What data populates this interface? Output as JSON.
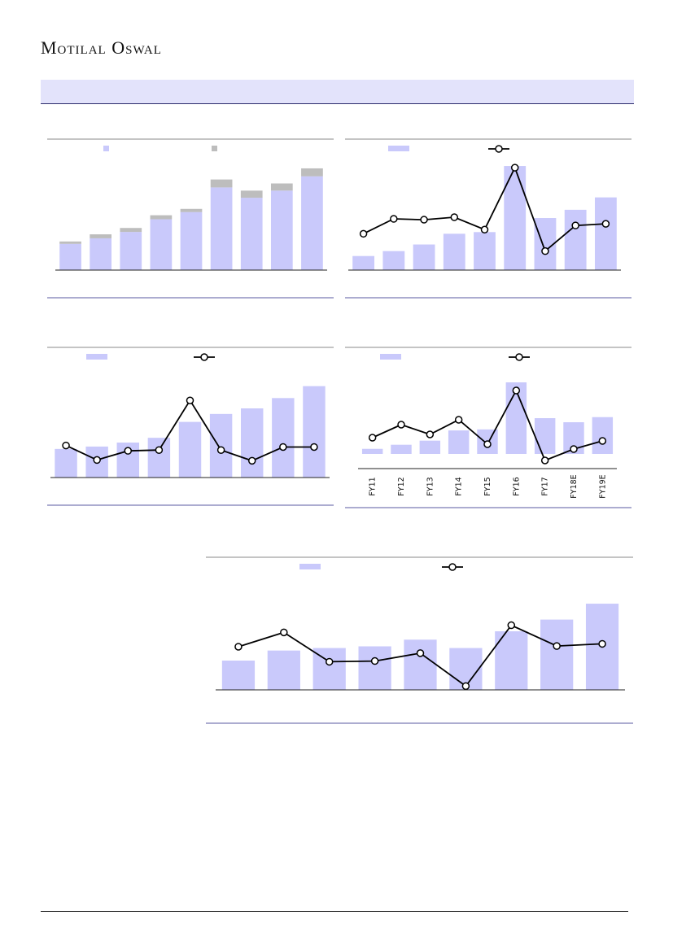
{
  "header": {
    "brand": "Motilal Oswal"
  },
  "colors": {
    "bar": "#c9c9fb",
    "bar_secondary": "#bdbdbd",
    "line": "#000000",
    "marker_fill": "#ffffff",
    "rule": "#5a5aa0"
  },
  "chart_data": [
    {
      "type": "bar",
      "stacked": true,
      "legend": "top-left",
      "series": [
        {
          "values": [
            33,
            40,
            48,
            64,
            73,
            104,
            91,
            100,
            118
          ]
        },
        {
          "values": [
            3,
            5,
            5,
            5,
            4,
            10,
            9,
            9,
            10
          ]
        }
      ]
    },
    {
      "type": "bar+line",
      "legend": "top-left",
      "series": [
        {
          "type": "bar",
          "values": [
            17,
            23,
            31,
            44,
            46,
            126,
            63,
            73,
            88
          ]
        },
        {
          "type": "line",
          "values": [
            44,
            62,
            61,
            64,
            49,
            124,
            23,
            54,
            56
          ]
        }
      ]
    },
    {
      "type": "bar+line",
      "legend": "top-left",
      "series": [
        {
          "type": "bar",
          "values": [
            36,
            39,
            44,
            50,
            70,
            80,
            87,
            100,
            115
          ]
        },
        {
          "type": "line",
          "values": [
            42,
            23,
            35,
            36,
            101,
            36,
            22,
            40,
            40
          ]
        }
      ]
    },
    {
      "type": "bar+line",
      "legend": "top-left",
      "categories": [
        "FY11",
        "FY12",
        "FY13",
        "FY14",
        "FY15",
        "FY16",
        "FY17",
        "FY18E",
        "FY19E"
      ],
      "series": [
        {
          "type": "bar",
          "values": [
            5,
            9,
            13,
            23,
            24,
            70,
            35,
            31,
            36
          ]
        },
        {
          "type": "line",
          "values": [
            6,
            14,
            8,
            17,
            2,
            35,
            -8,
            -1,
            4
          ]
        }
      ]
    },
    {
      "type": "bar+line",
      "legend": "top-left",
      "series": [
        {
          "type": "bar",
          "values": [
            35,
            47,
            50,
            52,
            60,
            50,
            70,
            84,
            103
          ]
        },
        {
          "type": "line",
          "values": [
            58,
            78,
            37,
            38,
            49,
            3,
            88,
            59,
            62
          ]
        }
      ]
    }
  ]
}
